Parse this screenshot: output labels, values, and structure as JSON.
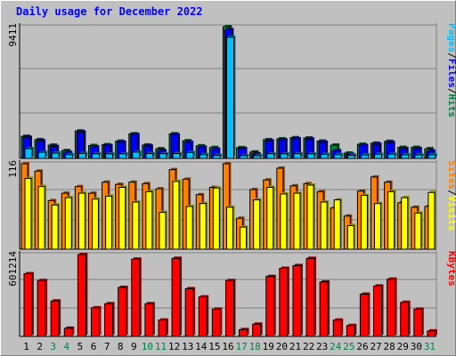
{
  "chart_data": {
    "type": "bar",
    "title": "Daily usage for December 2022",
    "categories": [
      "1",
      "2",
      "3",
      "4",
      "5",
      "6",
      "7",
      "8",
      "9",
      "10",
      "11",
      "12",
      "13",
      "14",
      "15",
      "16",
      "17",
      "18",
      "19",
      "20",
      "21",
      "22",
      "23",
      "24",
      "25",
      "26",
      "27",
      "28",
      "29",
      "30",
      "31"
    ],
    "weekend_days": [
      "3",
      "4",
      "10",
      "11",
      "17",
      "18",
      "24",
      "25",
      "31"
    ],
    "panels": [
      {
        "id": "pages-files-hits",
        "ylabel_parts": [
          "Pages",
          "/",
          "Files",
          "/",
          "Hits"
        ],
        "ylabel_colors": [
          "#00c0ff",
          "#000000",
          "#0000ff",
          "#000000",
          "#008040"
        ],
        "max_label": "9411",
        "ylim": [
          0,
          9411
        ],
        "grid_lines": 3,
        "series": [
          {
            "name": "Hits",
            "color": "#008040",
            "values": [
              1580,
              1340,
              950,
              560,
              1960,
              920,
              980,
              1230,
              1760,
              960,
              690,
              1760,
              1260,
              900,
              780,
              9411,
              770,
              460,
              1340,
              1400,
              1480,
              1460,
              1240,
              950,
              380,
              1010,
              1090,
              1220,
              790,
              790,
              690
            ]
          },
          {
            "name": "Files",
            "color": "#0000ff",
            "values": [
              1500,
              1250,
              850,
              420,
              1880,
              820,
              910,
              1150,
              1700,
              880,
              560,
              1680,
              1150,
              800,
              650,
              9200,
              700,
              320,
              1250,
              1320,
              1400,
              1380,
              1150,
              550,
              290,
              920,
              1010,
              1130,
              700,
              700,
              520
            ]
          },
          {
            "name": "Pages",
            "color": "#00c0ff",
            "values": [
              700,
              440,
              380,
              270,
              360,
              330,
              330,
              330,
              450,
              350,
              340,
              350,
              420,
              270,
              220,
              8660,
              200,
              200,
              340,
              330,
              340,
              330,
              290,
              270,
              220,
              250,
              290,
              300,
              260,
              250,
              260
            ]
          }
        ]
      },
      {
        "id": "visits-sites",
        "ylabel_parts": [
          "Sites",
          "/",
          "Visits"
        ],
        "ylabel_colors": [
          "#ff8000",
          "#000000",
          "#ffff00"
        ],
        "max_label": "116",
        "ylim": [
          0,
          116
        ],
        "grid_lines": 3,
        "series": [
          {
            "name": "Visits",
            "color": "#ff8000",
            "values": [
              116,
              106,
              66,
              76,
              85,
              76,
              91,
              88,
              91,
              89,
              82,
              108,
              95,
              74,
              84,
              116,
              42,
              81,
              94,
              110,
              86,
              89,
              78,
              56,
              45,
              79,
              98,
              91,
              63,
              57,
              58
            ]
          },
          {
            "name": "Sites",
            "color": "#ffff00",
            "values": [
              96,
              85,
              60,
              70,
              76,
              68,
              72,
              84,
              64,
              78,
              50,
              92,
              58,
              62,
              83,
              57,
              30,
              67,
              84,
              75,
              76,
              87,
              64,
              67,
              32,
              73,
              62,
              78,
              70,
              49,
              77
            ]
          }
        ]
      },
      {
        "id": "kbytes",
        "ylabel_parts": [
          "KBytes"
        ],
        "ylabel_colors": [
          "#ff0000"
        ],
        "max_label": "601214",
        "ylim": [
          0,
          601214
        ],
        "grid_lines": 3,
        "series": [
          {
            "name": "KBytes",
            "color": "#ff0000",
            "values": [
              460000,
              410000,
              260000,
              60000,
              601214,
              210000,
              240000,
              360000,
              567000,
              240000,
              120000,
              573000,
              350000,
              290000,
              200000,
              410000,
              50000,
              90000,
              440000,
              500000,
              520000,
              573000,
              400000,
              120000,
              80000,
              310000,
              370000,
              420000,
              250000,
              200000,
              40000
            ]
          }
        ]
      }
    ]
  }
}
